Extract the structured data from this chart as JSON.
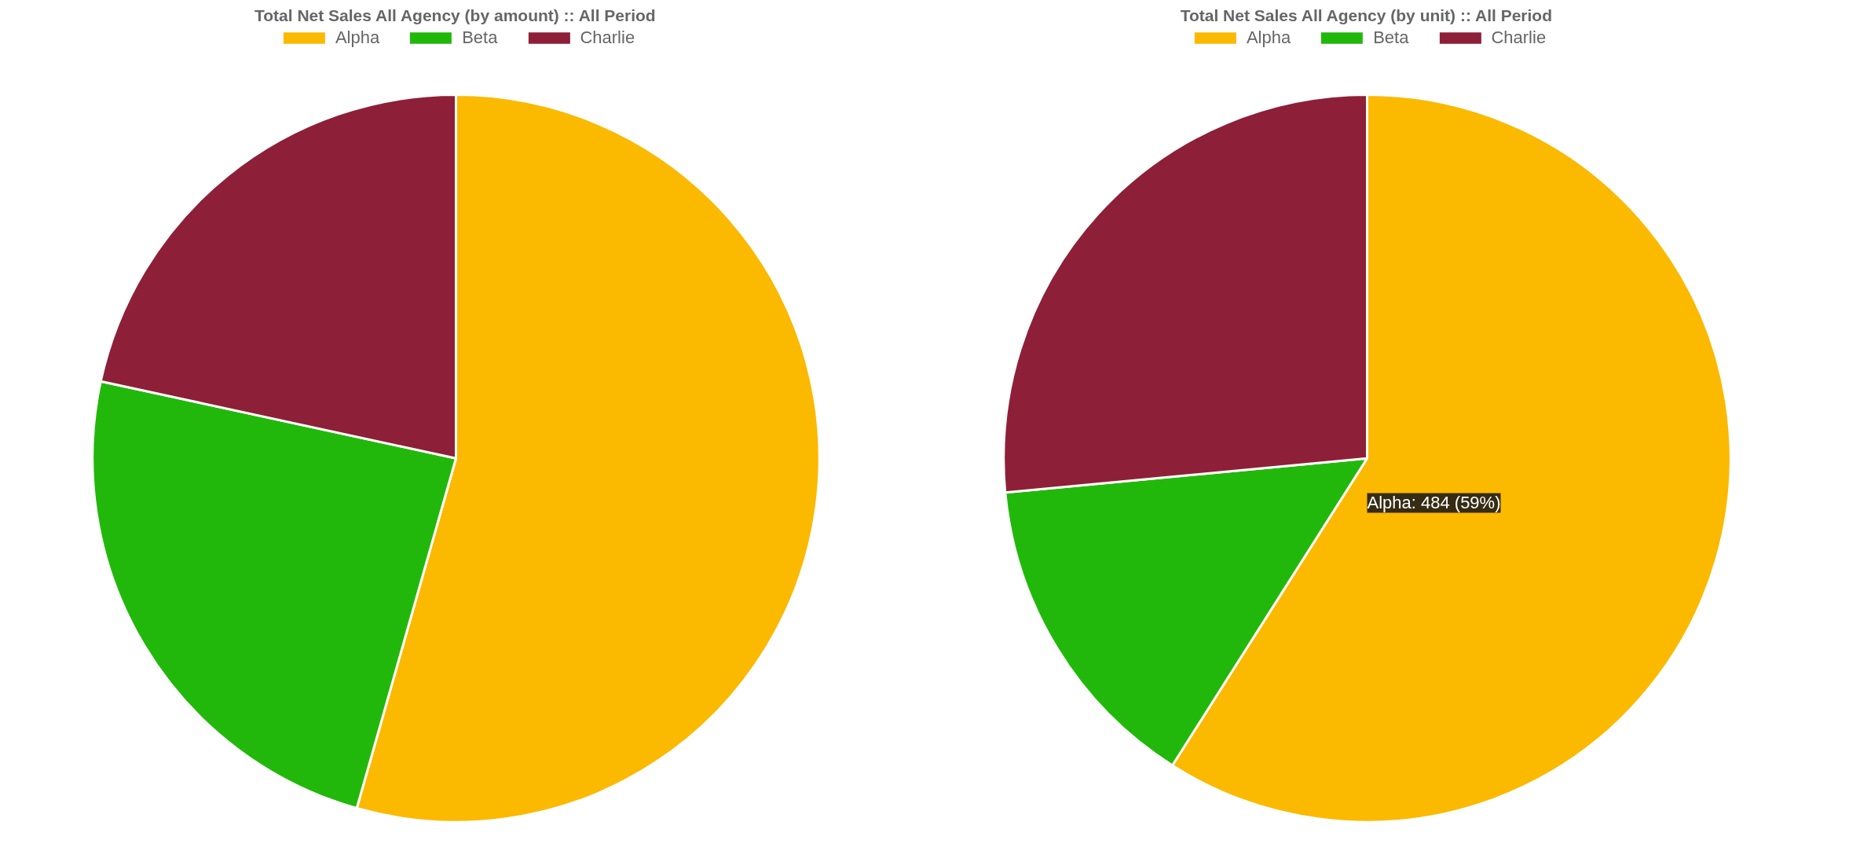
{
  "chart_data": [
    {
      "type": "pie",
      "title": "Total Net Sales All Agency (by amount) :: All Period",
      "categories": [
        "Alpha",
        "Beta",
        "Charlie"
      ],
      "values": [
        54.4,
        24.0,
        21.6
      ],
      "colors": [
        "#fbb900",
        "#22b80b",
        "#8e1f38"
      ],
      "legend": "top"
    },
    {
      "type": "pie",
      "title": "Total Net Sales All Agency (by unit) :: All Period",
      "categories": [
        "Alpha",
        "Beta",
        "Charlie"
      ],
      "values": [
        59,
        14.5,
        26.5
      ],
      "colors": [
        "#fbb900",
        "#22b80b",
        "#8e1f38"
      ],
      "legend": "top",
      "annotations": [
        "Alpha: 484 (59%)"
      ]
    }
  ]
}
